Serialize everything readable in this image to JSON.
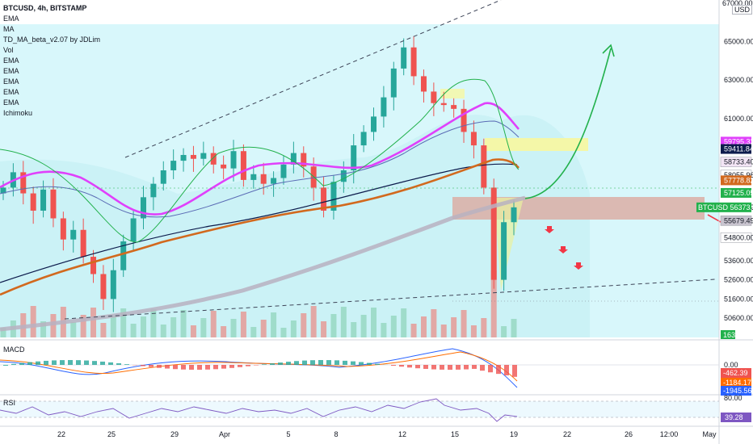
{
  "header": {
    "title": "BTCUSD, 4h, BITSTAMP",
    "indicators": [
      "EMA",
      "MA",
      "TD_MA_beta_v2.07 by JDLim",
      "Vol",
      "EMA",
      "EMA",
      "EMA",
      "EMA",
      "EMA",
      "Ichimoku"
    ]
  },
  "currency": "USD",
  "panes": {
    "macd_label": "MACD",
    "rsi_label": "RSI"
  },
  "colors": {
    "up": "#26a69a",
    "down": "#ef5350",
    "ema_pink": "#e040fb",
    "ema_orange": "#d2691e",
    "ema_navy": "#0d1b4c",
    "ma_gray": "#b0a8b9",
    "trend_green": "#22b14c",
    "target_red": "#f23645",
    "bg_cyan": "#d8f7fb",
    "zone_red": "#dca9a0",
    "zone_yellow": "#f4f7a8"
  },
  "chart_data": {
    "type": "candlestick",
    "symbol": "BTCUSD",
    "timeframe": "4h",
    "exchange": "BITSTAMP",
    "price_axis": {
      "ticks": [
        65000,
        63000,
        61000,
        59795.32,
        59411.84,
        58733.4,
        58055.96,
        57778.82,
        57125.05,
        56373.42,
        55679.49,
        54800,
        53600,
        52600,
        51600,
        50600
      ],
      "tick_labels": [
        "65000.00",
        "63000.00",
        "61000.00",
        "59795.32",
        "59411.84",
        "58733.40",
        "58055.96",
        "57778.82",
        "57125.05",
        "56373.42",
        "55679.49",
        "54800.00",
        "53600.00",
        "52600.00",
        "51600.00",
        "50600.00"
      ],
      "top_label": "67000.00",
      "range": [
        49600,
        67000
      ]
    },
    "price_tags": [
      {
        "label": "59795.32",
        "color": "#e040fb"
      },
      {
        "label": "59411.84",
        "color": "#0d1b4c"
      },
      {
        "label": "58733.40",
        "color": "#f3e5f5"
      },
      {
        "label": "58055.96",
        "color": "#ffffff"
      },
      {
        "label": "57778.82",
        "color": "#d2691e"
      },
      {
        "label": "57125.05",
        "color": "#22b14c"
      },
      {
        "label": "55679.49",
        "color": "#c9c4cf"
      },
      {
        "label": "54800.00",
        "color": "#ffffff"
      }
    ],
    "last_price_label": "BTCUSD",
    "volume_label": "163",
    "x_axis": {
      "labels": [
        "22",
        "25",
        "29",
        "Apr",
        "5",
        "8",
        "12",
        "15",
        "19",
        "22",
        "26",
        "12:00",
        "May"
      ]
    },
    "series": [
      {
        "name": "Close",
        "values": [
          57400,
          58200,
          57100,
          56200,
          57300,
          55800,
          54700,
          55200,
          53800,
          52900,
          51600,
          53100,
          54600,
          55800,
          56900,
          57600,
          58300,
          58800,
          59100,
          58900,
          59200,
          58600,
          58400,
          59300,
          57800,
          58100,
          57600,
          57900,
          58600,
          59200,
          58500,
          57400,
          56200,
          57700,
          58300,
          59600,
          60300,
          61100,
          62100,
          63600,
          64700,
          63200,
          62400,
          61800,
          61700,
          61500,
          60300,
          59600,
          57400,
          52600,
          55600,
          56373
        ]
      }
    ],
    "macd": {
      "label": "MACD",
      "ticks": [
        "0.00",
        "-462.39",
        "-1184.17",
        "-1945.56"
      ],
      "range": [
        -2000,
        800
      ]
    },
    "rsi": {
      "label": "RSI",
      "ticks": [
        "80.00",
        "39.28"
      ],
      "range": [
        20,
        85
      ],
      "value": 39.28
    }
  }
}
